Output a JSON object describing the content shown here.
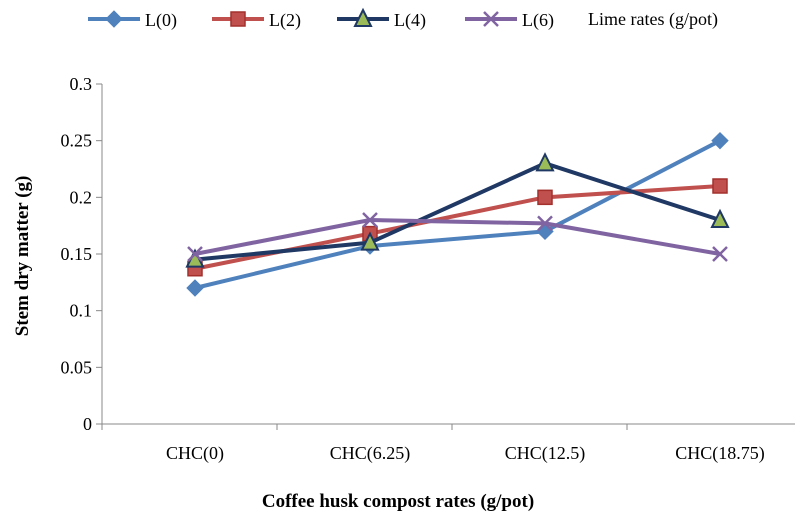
{
  "chart_data": {
    "type": "line",
    "title": "",
    "xlabel": "Coffee husk compost rates (g/pot)",
    "ylabel": "Stem dry matter (g)",
    "categories": [
      "CHC(0)",
      "CHC(6.25)",
      "CHC(12.5)",
      "CHC(18.75)"
    ],
    "ylim": [
      0,
      0.3
    ],
    "yticks": [
      "0",
      "0.05",
      "0.1",
      "0.15",
      "0.2",
      "0.25",
      "0.3"
    ],
    "grid": false,
    "legend_title": "Lime rates (g/pot)",
    "legend_position": "top",
    "series": [
      {
        "name": "L(0)",
        "values": [
          0.12,
          0.157,
          0.17,
          0.25
        ],
        "color": "#4F81BD",
        "marker": "diamond"
      },
      {
        "name": "L(2)",
        "values": [
          0.137,
          0.168,
          0.2,
          0.21
        ],
        "color": "#C0504D",
        "marker": "square"
      },
      {
        "name": "L(4)",
        "values": [
          0.145,
          0.16,
          0.23,
          0.18
        ],
        "color": "#1F3864",
        "marker": "triangle",
        "marker_fill": "#9BBB59"
      },
      {
        "name": "L(6)",
        "values": [
          0.15,
          0.18,
          0.177,
          0.15
        ],
        "color": "#8064A2",
        "marker": "x"
      }
    ]
  }
}
